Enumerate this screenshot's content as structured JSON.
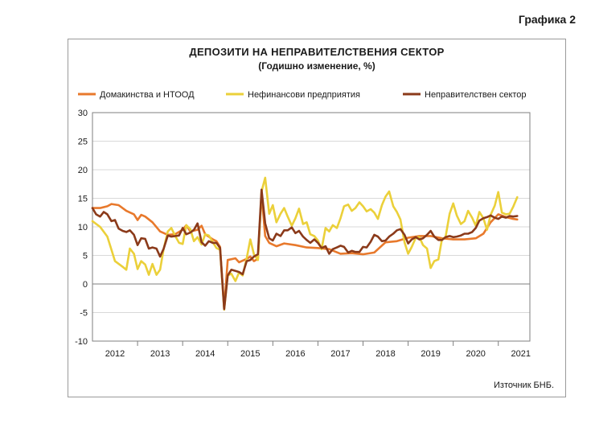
{
  "document_label": "Графика 2",
  "source": "Източник БНБ.",
  "colors": {
    "households": "#E8792C",
    "nonfinancial": "#EBD03A",
    "government": "#8B3A1A",
    "grid": "#d9d9d9",
    "axis": "#7f7f7f"
  },
  "chart_data": {
    "type": "line",
    "title": "ДЕПОЗИТИ НА НЕПРАВИТЕЛСТВЕНИЯ СЕКТОР",
    "subtitle": "(Годишно изменение, %)",
    "xlabel": "",
    "ylabel": "",
    "ylim": [
      -10,
      30
    ],
    "yticks": [
      -10,
      -5,
      0,
      5,
      10,
      15,
      20,
      25,
      30
    ],
    "xlim": [
      2011.5,
      2021.2
    ],
    "x_tick_labels": [
      "2012",
      "2013",
      "2014",
      "2015",
      "2016",
      "2017",
      "2018",
      "2019",
      "2020",
      "2021"
    ],
    "x_tick_positions": [
      2012,
      2013,
      2014,
      2015,
      2016,
      2017,
      2018,
      2019,
      2020,
      2021
    ],
    "grid": "horizontal",
    "legend_position": "top",
    "series": [
      {
        "name": "Домакинства и НТООД",
        "color_key": "households",
        "points": [
          [
            2011.5,
            13.3
          ],
          [
            2011.67,
            13.3
          ],
          [
            2011.83,
            13.6
          ],
          [
            2011.92,
            14
          ],
          [
            2012.08,
            13.8
          ],
          [
            2012.25,
            12.8
          ],
          [
            2012.42,
            12.2
          ],
          [
            2012.5,
            11.2
          ],
          [
            2012.58,
            12.1
          ],
          [
            2012.67,
            11.8
          ],
          [
            2012.83,
            10.8
          ],
          [
            2013,
            9.2
          ],
          [
            2013.17,
            8.6
          ],
          [
            2013.33,
            8.7
          ],
          [
            2013.5,
            9.5
          ],
          [
            2013.58,
            10.3
          ],
          [
            2013.67,
            9.2
          ],
          [
            2013.83,
            9.5
          ],
          [
            2013.92,
            10.2
          ],
          [
            2014,
            8.7
          ],
          [
            2014.17,
            7.8
          ],
          [
            2014.25,
            7.5
          ],
          [
            2014.33,
            6.5
          ],
          [
            2014.42,
            -4.2
          ],
          [
            2014.5,
            4.2
          ],
          [
            2014.67,
            4.5
          ],
          [
            2014.75,
            3.8
          ],
          [
            2014.92,
            4.4
          ],
          [
            2015,
            4.8
          ],
          [
            2015.08,
            4
          ],
          [
            2015.17,
            4.4
          ],
          [
            2015.25,
            15.8
          ],
          [
            2015.33,
            8.4
          ],
          [
            2015.42,
            7.2
          ],
          [
            2015.58,
            6.6
          ],
          [
            2015.75,
            7.1
          ],
          [
            2016,
            6.8
          ],
          [
            2016.25,
            6.4
          ],
          [
            2016.5,
            6.3
          ],
          [
            2016.75,
            6.1
          ],
          [
            2017,
            5.3
          ],
          [
            2017.25,
            5.4
          ],
          [
            2017.5,
            5.2
          ],
          [
            2017.75,
            5.5
          ],
          [
            2018,
            7.3
          ],
          [
            2018.25,
            7.5
          ],
          [
            2018.5,
            8.1
          ],
          [
            2018.75,
            8.4
          ],
          [
            2019,
            8.4
          ],
          [
            2019.25,
            8
          ],
          [
            2019.5,
            7.8
          ],
          [
            2019.75,
            7.8
          ],
          [
            2020,
            8
          ],
          [
            2020.17,
            8.8
          ],
          [
            2020.33,
            10.8
          ],
          [
            2020.5,
            12.2
          ],
          [
            2020.67,
            11.7
          ],
          [
            2020.83,
            11.4
          ],
          [
            2020.92,
            11.3
          ]
        ]
      },
      {
        "name": "Нефинансови предприятия",
        "color_key": "nonfinancial",
        "points": [
          [
            2011.5,
            11
          ],
          [
            2011.67,
            10
          ],
          [
            2011.83,
            8.3
          ],
          [
            2011.92,
            6
          ],
          [
            2012,
            4
          ],
          [
            2012.17,
            3
          ],
          [
            2012.25,
            2.5
          ],
          [
            2012.33,
            6.2
          ],
          [
            2012.42,
            5.3
          ],
          [
            2012.5,
            2.6
          ],
          [
            2012.58,
            4
          ],
          [
            2012.67,
            3.4
          ],
          [
            2012.75,
            1.6
          ],
          [
            2012.83,
            3.5
          ],
          [
            2012.92,
            1.6
          ],
          [
            2013,
            2.5
          ],
          [
            2013.08,
            6.2
          ],
          [
            2013.17,
            9.2
          ],
          [
            2013.25,
            9.8
          ],
          [
            2013.33,
            8.5
          ],
          [
            2013.42,
            7.2
          ],
          [
            2013.5,
            7
          ],
          [
            2013.58,
            10.3
          ],
          [
            2013.67,
            9.6
          ],
          [
            2013.75,
            7.5
          ],
          [
            2013.83,
            8.2
          ],
          [
            2013.92,
            6.9
          ],
          [
            2014,
            8.7
          ],
          [
            2014.08,
            8.5
          ],
          [
            2014.17,
            7.3
          ],
          [
            2014.25,
            6.3
          ],
          [
            2014.33,
            6
          ],
          [
            2014.42,
            -4.5
          ],
          [
            2014.5,
            1.5
          ],
          [
            2014.58,
            1.8
          ],
          [
            2014.67,
            0.5
          ],
          [
            2014.75,
            2
          ],
          [
            2014.83,
            1.5
          ],
          [
            2014.92,
            4.5
          ],
          [
            2015,
            7.8
          ],
          [
            2015.08,
            5.2
          ],
          [
            2015.17,
            4.2
          ],
          [
            2015.25,
            16.2
          ],
          [
            2015.33,
            18.6
          ],
          [
            2015.42,
            12.3
          ],
          [
            2015.5,
            13.8
          ],
          [
            2015.58,
            10.8
          ],
          [
            2015.67,
            12.3
          ],
          [
            2015.75,
            13.3
          ],
          [
            2015.83,
            11.8
          ],
          [
            2015.92,
            10.2
          ],
          [
            2016,
            11.5
          ],
          [
            2016.08,
            13.2
          ],
          [
            2016.17,
            10.5
          ],
          [
            2016.25,
            10.8
          ],
          [
            2016.33,
            8.7
          ],
          [
            2016.42,
            8.4
          ],
          [
            2016.5,
            7.6
          ],
          [
            2016.58,
            6.1
          ],
          [
            2016.67,
            9.8
          ],
          [
            2016.75,
            9.2
          ],
          [
            2016.83,
            10.3
          ],
          [
            2016.92,
            9.8
          ],
          [
            2017,
            11.5
          ],
          [
            2017.08,
            13.6
          ],
          [
            2017.17,
            13.9
          ],
          [
            2017.25,
            12.8
          ],
          [
            2017.33,
            13.3
          ],
          [
            2017.42,
            14.3
          ],
          [
            2017.5,
            13.6
          ],
          [
            2017.58,
            12.7
          ],
          [
            2017.67,
            13.1
          ],
          [
            2017.75,
            12.5
          ],
          [
            2017.83,
            11.4
          ],
          [
            2017.92,
            13.8
          ],
          [
            2018,
            15.3
          ],
          [
            2018.08,
            16.2
          ],
          [
            2018.17,
            13.6
          ],
          [
            2018.25,
            12.6
          ],
          [
            2018.33,
            11.3
          ],
          [
            2018.42,
            7.3
          ],
          [
            2018.5,
            5.3
          ],
          [
            2018.58,
            6.5
          ],
          [
            2018.67,
            8.1
          ],
          [
            2018.75,
            8.2
          ],
          [
            2018.83,
            6.8
          ],
          [
            2018.92,
            6.2
          ],
          [
            2019,
            2.8
          ],
          [
            2019.08,
            4
          ],
          [
            2019.17,
            4.3
          ],
          [
            2019.25,
            7.8
          ],
          [
            2019.33,
            8.2
          ],
          [
            2019.42,
            12.3
          ],
          [
            2019.5,
            14.1
          ],
          [
            2019.58,
            12
          ],
          [
            2019.67,
            10.5
          ],
          [
            2019.75,
            11
          ],
          [
            2019.83,
            12.8
          ],
          [
            2019.92,
            11.6
          ],
          [
            2020,
            10.2
          ],
          [
            2020.08,
            12.6
          ],
          [
            2020.17,
            11.5
          ],
          [
            2020.25,
            9.5
          ],
          [
            2020.33,
            12.1
          ],
          [
            2020.42,
            13.7
          ],
          [
            2020.5,
            16.1
          ],
          [
            2020.58,
            12.5
          ],
          [
            2020.67,
            12.2
          ],
          [
            2020.75,
            12.3
          ],
          [
            2020.83,
            13.5
          ],
          [
            2020.92,
            15.2
          ]
        ]
      },
      {
        "name": "Неправителствен сектор",
        "color_key": "government",
        "points": [
          [
            2011.5,
            13.3
          ],
          [
            2011.58,
            12.2
          ],
          [
            2011.67,
            11.8
          ],
          [
            2011.75,
            12.6
          ],
          [
            2011.83,
            12.2
          ],
          [
            2011.92,
            11
          ],
          [
            2012,
            11.2
          ],
          [
            2012.08,
            9.7
          ],
          [
            2012.17,
            9.3
          ],
          [
            2012.25,
            9.1
          ],
          [
            2012.33,
            9.4
          ],
          [
            2012.42,
            8.6
          ],
          [
            2012.5,
            6.8
          ],
          [
            2012.58,
            8
          ],
          [
            2012.67,
            7.9
          ],
          [
            2012.75,
            6.2
          ],
          [
            2012.83,
            6.4
          ],
          [
            2012.92,
            6.2
          ],
          [
            2013,
            4.8
          ],
          [
            2013.08,
            6.2
          ],
          [
            2013.17,
            8.5
          ],
          [
            2013.25,
            8.3
          ],
          [
            2013.42,
            8.5
          ],
          [
            2013.5,
            9.8
          ],
          [
            2013.58,
            8.7
          ],
          [
            2013.67,
            9
          ],
          [
            2013.75,
            9.5
          ],
          [
            2013.83,
            10.6
          ],
          [
            2013.92,
            7.3
          ],
          [
            2014,
            6.7
          ],
          [
            2014.08,
            7.5
          ],
          [
            2014.17,
            7.2
          ],
          [
            2014.25,
            7.2
          ],
          [
            2014.33,
            6.3
          ],
          [
            2014.42,
            -4.4
          ],
          [
            2014.5,
            1.5
          ],
          [
            2014.58,
            2.5
          ],
          [
            2014.67,
            2.3
          ],
          [
            2014.75,
            2.1
          ],
          [
            2014.83,
            1.7
          ],
          [
            2014.92,
            4
          ],
          [
            2015,
            4.2
          ],
          [
            2015.08,
            4.8
          ],
          [
            2015.17,
            5.2
          ],
          [
            2015.25,
            16.5
          ],
          [
            2015.33,
            10.6
          ],
          [
            2015.42,
            8
          ],
          [
            2015.5,
            7.6
          ],
          [
            2015.58,
            8.8
          ],
          [
            2015.67,
            8.4
          ],
          [
            2015.75,
            9.4
          ],
          [
            2015.83,
            9.4
          ],
          [
            2015.92,
            9.9
          ],
          [
            2016,
            8.9
          ],
          [
            2016.08,
            9.3
          ],
          [
            2016.17,
            8.3
          ],
          [
            2016.25,
            7.7
          ],
          [
            2016.33,
            7.2
          ],
          [
            2016.42,
            7.8
          ],
          [
            2016.5,
            7.2
          ],
          [
            2016.58,
            6.3
          ],
          [
            2016.67,
            6.6
          ],
          [
            2016.75,
            5.3
          ],
          [
            2016.83,
            6.1
          ],
          [
            2016.92,
            6.4
          ],
          [
            2017,
            6.7
          ],
          [
            2017.08,
            6.5
          ],
          [
            2017.17,
            5.5
          ],
          [
            2017.25,
            5.8
          ],
          [
            2017.33,
            5.6
          ],
          [
            2017.42,
            5.6
          ],
          [
            2017.5,
            6.5
          ],
          [
            2017.58,
            6.4
          ],
          [
            2017.67,
            7.4
          ],
          [
            2017.75,
            8.6
          ],
          [
            2017.83,
            8.3
          ],
          [
            2017.92,
            7.5
          ],
          [
            2018,
            7.6
          ],
          [
            2018.08,
            8.3
          ],
          [
            2018.17,
            8.8
          ],
          [
            2018.25,
            9.4
          ],
          [
            2018.33,
            9.6
          ],
          [
            2018.42,
            8.6
          ],
          [
            2018.5,
            7.1
          ],
          [
            2018.58,
            7.8
          ],
          [
            2018.67,
            8.2
          ],
          [
            2018.75,
            7.8
          ],
          [
            2018.83,
            8
          ],
          [
            2018.92,
            8.6
          ],
          [
            2019,
            9.3
          ],
          [
            2019.08,
            8.3
          ],
          [
            2019.17,
            7.7
          ],
          [
            2019.25,
            7.7
          ],
          [
            2019.33,
            8.2
          ],
          [
            2019.42,
            8.4
          ],
          [
            2019.5,
            8.2
          ],
          [
            2019.58,
            8.3
          ],
          [
            2019.67,
            8.5
          ],
          [
            2019.75,
            8.8
          ],
          [
            2019.83,
            8.8
          ],
          [
            2019.92,
            9.1
          ],
          [
            2020,
            9.8
          ],
          [
            2020.08,
            11.1
          ],
          [
            2020.17,
            11.5
          ],
          [
            2020.25,
            11.7
          ],
          [
            2020.33,
            12
          ],
          [
            2020.42,
            11.6
          ],
          [
            2020.5,
            11.4
          ],
          [
            2020.58,
            11.8
          ],
          [
            2020.67,
            11.6
          ],
          [
            2020.75,
            11.9
          ],
          [
            2020.83,
            11.8
          ],
          [
            2020.92,
            11.9
          ]
        ]
      }
    ]
  }
}
